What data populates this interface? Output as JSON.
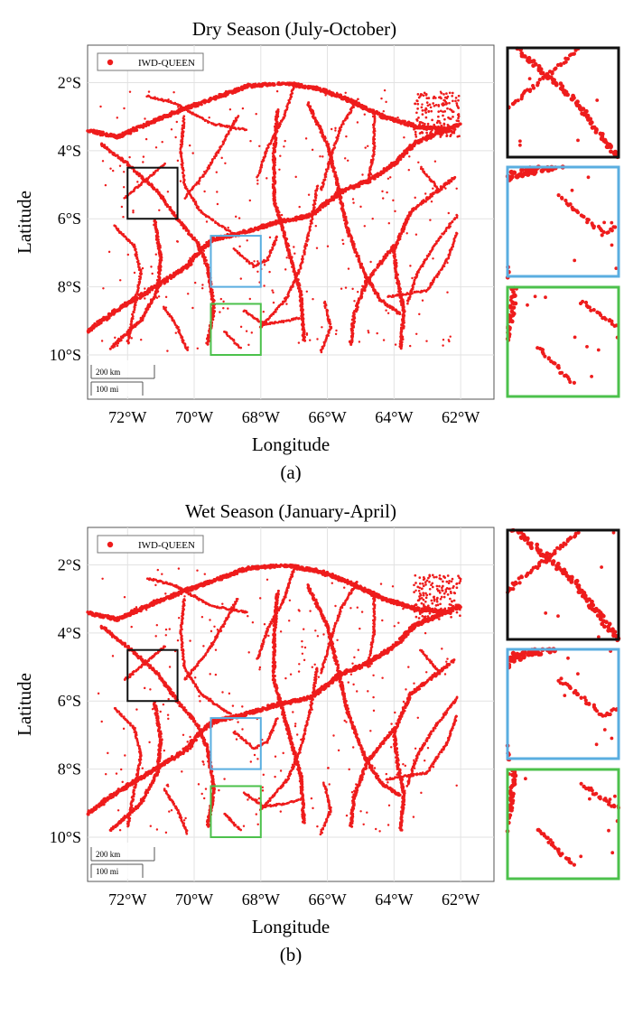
{
  "chart_data": [
    {
      "type": "scatter",
      "title": "Dry Season (July-October)",
      "caption": "(a)",
      "xlabel": "Longitude",
      "ylabel": "Latitude",
      "x_tick_labels": [
        "72°W",
        "70°W",
        "68°W",
        "66°W",
        "64°W",
        "62°W"
      ],
      "y_tick_labels": [
        "2°S",
        "4°S",
        "6°S",
        "8°S",
        "10°S"
      ],
      "x_ticks": [
        -72,
        -70,
        -68,
        -66,
        -64,
        -62
      ],
      "y_ticks": [
        -2,
        -4,
        -6,
        -8,
        -10
      ],
      "xlim": [
        -73.2,
        -61.0
      ],
      "ylim": [
        -11.3,
        -0.9
      ],
      "grid": true,
      "legend": {
        "position": "top-left",
        "entries": [
          "IWD-QUEEN"
        ]
      },
      "scale_bar": {
        "km": "200 km",
        "mi": "100 mi"
      },
      "series": [
        {
          "name": "IWD-QUEEN",
          "color": "#ee1c1c",
          "description": "dense river network detections"
        }
      ],
      "zoom_boxes": [
        {
          "name": "black",
          "color": "#111111",
          "lon": [
            -72.0,
            -70.5
          ],
          "lat": [
            -6.0,
            -4.5
          ]
        },
        {
          "name": "blue",
          "color": "#5aaee0",
          "lon": [
            -69.5,
            -68.0
          ],
          "lat": [
            -8.0,
            -6.5
          ]
        },
        {
          "name": "green",
          "color": "#4cc14c",
          "lon": [
            -69.5,
            -68.0
          ],
          "lat": [
            -10.0,
            -8.5
          ]
        }
      ]
    },
    {
      "type": "scatter",
      "title": "Wet Season (January-April)",
      "caption": "(b)",
      "xlabel": "Longitude",
      "ylabel": "Latitude",
      "x_tick_labels": [
        "72°W",
        "70°W",
        "68°W",
        "66°W",
        "64°W",
        "62°W"
      ],
      "y_tick_labels": [
        "2°S",
        "4°S",
        "6°S",
        "8°S",
        "10°S"
      ],
      "x_ticks": [
        -72,
        -70,
        -68,
        -66,
        -64,
        -62
      ],
      "y_ticks": [
        -2,
        -4,
        -6,
        -8,
        -10
      ],
      "xlim": [
        -73.2,
        -61.0
      ],
      "ylim": [
        -11.3,
        -0.9
      ],
      "grid": true,
      "legend": {
        "position": "top-left",
        "entries": [
          "IWD-QUEEN"
        ]
      },
      "scale_bar": {
        "km": "200 km",
        "mi": "100 mi"
      },
      "series": [
        {
          "name": "IWD-QUEEN",
          "color": "#ee1c1c",
          "description": "dense river network detections"
        }
      ],
      "zoom_boxes": [
        {
          "name": "black",
          "color": "#111111",
          "lon": [
            -72.0,
            -70.5
          ],
          "lat": [
            -6.0,
            -4.5
          ]
        },
        {
          "name": "blue",
          "color": "#5aaee0",
          "lon": [
            -69.5,
            -68.0
          ],
          "lat": [
            -8.0,
            -6.5
          ]
        },
        {
          "name": "green",
          "color": "#4cc14c",
          "lon": [
            -69.5,
            -68.0
          ],
          "lat": [
            -10.0,
            -8.5
          ]
        }
      ]
    }
  ],
  "rivers": [
    [
      [
        -73.2,
        -9.3
      ],
      [
        -72.2,
        -8.6
      ],
      [
        -71.0,
        -7.9
      ],
      [
        -70.2,
        -7.4
      ],
      [
        -69.8,
        -6.9
      ],
      [
        -69.4,
        -6.6
      ],
      [
        -68.5,
        -6.4
      ],
      [
        -67.5,
        -6.1
      ],
      [
        -66.5,
        -5.9
      ],
      [
        -65.6,
        -5.2
      ],
      [
        -64.8,
        -4.9
      ],
      [
        -64.0,
        -4.4
      ],
      [
        -63.4,
        -3.8
      ],
      [
        -62.5,
        -3.4
      ],
      [
        -62.0,
        -3.2
      ]
    ],
    [
      [
        -73.2,
        -3.4
      ],
      [
        -72.3,
        -3.6
      ],
      [
        -71.4,
        -3.2
      ],
      [
        -70.4,
        -2.8
      ],
      [
        -69.5,
        -2.5
      ],
      [
        -68.4,
        -2.1
      ],
      [
        -67.3,
        -2.0
      ],
      [
        -66.2,
        -2.2
      ],
      [
        -65.4,
        -2.5
      ],
      [
        -64.3,
        -3.0
      ],
      [
        -63.3,
        -3.3
      ],
      [
        -62.3,
        -3.4
      ]
    ],
    [
      [
        -66.6,
        -2.6
      ],
      [
        -66.0,
        -3.8
      ],
      [
        -65.7,
        -5.0
      ],
      [
        -65.4,
        -6.3
      ],
      [
        -64.9,
        -7.6
      ],
      [
        -64.4,
        -8.4
      ],
      [
        -63.8,
        -8.8
      ]
    ],
    [
      [
        -67.5,
        -2.8
      ],
      [
        -67.6,
        -4.1
      ],
      [
        -67.6,
        -5.4
      ],
      [
        -67.2,
        -6.8
      ],
      [
        -66.8,
        -8.2
      ],
      [
        -66.7,
        -9.6
      ]
    ],
    [
      [
        -72.8,
        -3.8
      ],
      [
        -72.0,
        -4.4
      ],
      [
        -71.1,
        -5.2
      ],
      [
        -70.5,
        -6.0
      ],
      [
        -69.9,
        -6.7
      ],
      [
        -69.6,
        -7.4
      ],
      [
        -69.4,
        -8.6
      ],
      [
        -69.6,
        -9.7
      ]
    ],
    [
      [
        -64.0,
        -6.8
      ],
      [
        -64.8,
        -7.8
      ],
      [
        -65.2,
        -8.8
      ],
      [
        -65.3,
        -9.7
      ]
    ],
    [
      [
        -62.2,
        -4.8
      ],
      [
        -63.5,
        -5.8
      ],
      [
        -64.0,
        -6.9
      ],
      [
        -63.9,
        -7.8
      ],
      [
        -63.7,
        -8.7
      ],
      [
        -63.8,
        -9.8
      ]
    ],
    [
      [
        -72.5,
        -9.8
      ],
      [
        -71.6,
        -9.0
      ],
      [
        -71.1,
        -8.1
      ],
      [
        -71.0,
        -7.1
      ],
      [
        -71.2,
        -6.0
      ]
    ],
    [
      [
        -68.7,
        -3.0
      ],
      [
        -69.2,
        -3.9
      ],
      [
        -69.7,
        -4.7
      ],
      [
        -70.3,
        -5.4
      ]
    ],
    [
      [
        -64.6,
        -2.9
      ],
      [
        -64.6,
        -4.0
      ],
      [
        -64.8,
        -5.0
      ]
    ],
    [
      [
        -70.3,
        -3.0
      ],
      [
        -70.4,
        -4.0
      ],
      [
        -70.3,
        -5.0
      ],
      [
        -69.8,
        -5.8
      ],
      [
        -68.9,
        -6.4
      ]
    ],
    [
      [
        -68.0,
        -9.2
      ],
      [
        -67.2,
        -8.3
      ],
      [
        -66.8,
        -7.4
      ],
      [
        -66.5,
        -6.2
      ],
      [
        -66.3,
        -5.0
      ]
    ],
    [
      [
        -68.8,
        -6.9
      ],
      [
        -68.2,
        -7.4
      ],
      [
        -67.8,
        -7.2
      ],
      [
        -67.5,
        -6.5
      ]
    ],
    [
      [
        -68.5,
        -8.7
      ],
      [
        -67.9,
        -9.1
      ],
      [
        -67.2,
        -9.0
      ],
      [
        -66.8,
        -8.9
      ]
    ],
    [
      [
        -62.1,
        -5.9
      ],
      [
        -62.8,
        -6.8
      ],
      [
        -63.3,
        -7.6
      ],
      [
        -63.6,
        -8.5
      ]
    ],
    [
      [
        -71.4,
        -2.4
      ],
      [
        -70.6,
        -2.6
      ],
      [
        -69.5,
        -3.2
      ],
      [
        -68.4,
        -3.4
      ]
    ],
    [
      [
        -72.4,
        -6.2
      ],
      [
        -71.8,
        -6.8
      ],
      [
        -71.6,
        -7.6
      ],
      [
        -71.8,
        -8.6
      ],
      [
        -72.0,
        -9.7
      ]
    ],
    [
      [
        -70.9,
        -8.6
      ],
      [
        -70.5,
        -9.2
      ],
      [
        -70.2,
        -9.9
      ]
    ],
    [
      [
        -66.2,
        -9.9
      ],
      [
        -65.9,
        -9.2
      ],
      [
        -66.1,
        -8.4
      ]
    ],
    [
      [
        -67.0,
        -2.1
      ],
      [
        -67.3,
        -3.0
      ],
      [
        -67.8,
        -3.9
      ],
      [
        -68.1,
        -4.8
      ]
    ],
    [
      [
        -64.2,
        -8.3
      ],
      [
        -63.0,
        -8.1
      ],
      [
        -62.4,
        -7.2
      ],
      [
        -62.1,
        -6.4
      ]
    ],
    [
      [
        -65.1,
        -2.5
      ],
      [
        -65.6,
        -3.3
      ],
      [
        -65.9,
        -4.2
      ],
      [
        -66.2,
        -5.2
      ]
    ],
    [
      [
        -69.1,
        -9.3
      ],
      [
        -68.6,
        -9.8
      ]
    ],
    [
      [
        -70.9,
        -4.4
      ],
      [
        -71.5,
        -4.9
      ],
      [
        -72.1,
        -5.4
      ]
    ],
    [
      [
        -63.2,
        -4.5
      ],
      [
        -62.6,
        -5.2
      ]
    ]
  ]
}
